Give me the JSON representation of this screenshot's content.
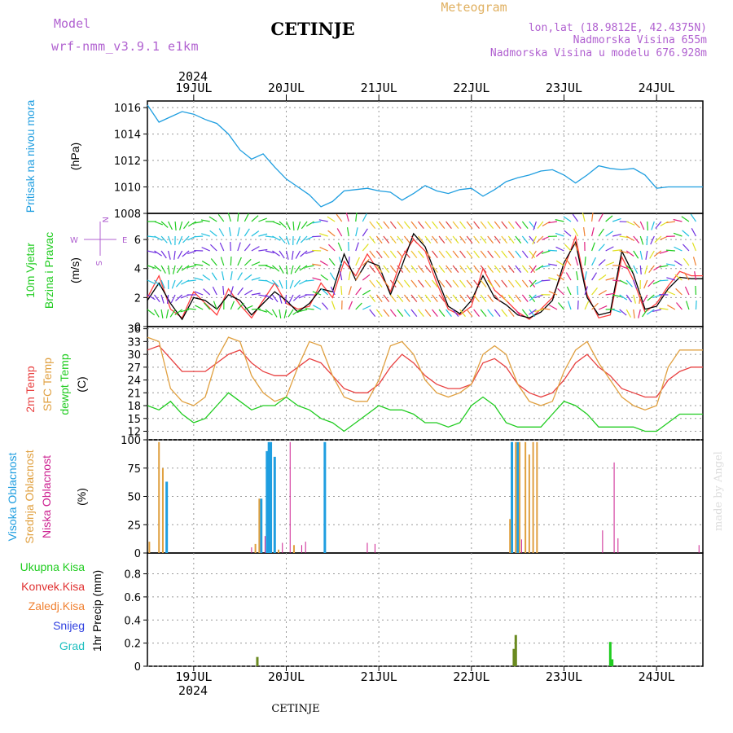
{
  "header": {
    "model_label": "Model",
    "model_name": "wrf-nmm_v3.9.1  e1km",
    "title": "CETINJE",
    "meteogram": "Meteogram",
    "lonlat": "lon,lat (18.9812E, 42.4375N)",
    "altitude": "Nadmorska Visina 655m",
    "model_altitude": "Nadmorska Visina u modelu 676.928m",
    "year": "2024",
    "footer_station": "CETINJE",
    "credit": "made by Angel"
  },
  "time_axis": {
    "day_labels": [
      "19JUL",
      "20JUL",
      "21JUL",
      "22JUL",
      "23JUL",
      "24JUL"
    ],
    "year": "2024",
    "start_hour": 12,
    "days_shown": 6
  },
  "colors": {
    "pressure": "#1f9ee0",
    "temp2m": "#e84040",
    "sfc": "#e0a040",
    "dewpt": "#20cc20",
    "high_cloud": "#1f9ee0",
    "mid_cloud": "#e0a040",
    "low_cloud": "#cc2090",
    "total_precip": "#20cc20",
    "conv_precip": "#e03030",
    "frozen_precip": "#f08030",
    "snow": "#3040e0",
    "hail": "#20c0c0"
  },
  "panels": {
    "pressure": {
      "ylabel_main": "Pritisak na nivou mora",
      "unit": "(hPa)",
      "ticks": [
        "1016",
        "1014",
        "1012",
        "1010",
        "1008"
      ]
    },
    "wind": {
      "ylabel_1": "10m Vjetar",
      "ylabel_2": "Brzina i Pravac",
      "unit": "(m/s)",
      "compass": {
        "n": "N",
        "s": "S",
        "e": "E",
        "w": "W"
      },
      "ticks": [
        "6",
        "4",
        "2",
        "0"
      ]
    },
    "temperature": {
      "ylabel_1": "2m Temp",
      "ylabel_2": "SFC Temp",
      "ylabel_3": "dewpt Temp",
      "unit": "(C)",
      "ticks": [
        "36",
        "33",
        "30",
        "27",
        "24",
        "21",
        "18",
        "15",
        "12"
      ]
    },
    "clouds": {
      "ylabel_1": "Visoka Oblacnost",
      "ylabel_2": "Srednja Oblacnost",
      "ylabel_3": "Niska Oblacnost",
      "unit": "(%)",
      "ticks": [
        "100",
        "75",
        "50",
        "25",
        "0"
      ]
    },
    "precip": {
      "legend": [
        "Ukupna Kisa",
        "Konvek.Kisa",
        "Zaledj.Kisa",
        "Snijeg",
        "Grad"
      ],
      "ylabel": "1hr Precip (mm)",
      "ticks": [
        "0.8",
        "0.6",
        "0.4",
        "0.2",
        "0"
      ]
    }
  },
  "chart_data": [
    {
      "type": "line",
      "name": "pressure",
      "ylim": [
        1008,
        1016.5
      ],
      "x_hours": [
        0,
        3,
        6,
        9,
        12,
        15,
        18,
        21,
        24,
        27,
        30,
        33,
        36,
        39,
        42,
        45,
        48,
        51,
        54,
        57,
        60,
        63,
        66,
        69,
        72,
        75,
        78,
        81,
        84,
        87,
        90,
        93,
        96,
        99,
        102,
        105,
        108,
        111,
        114,
        117,
        120,
        123,
        126,
        129,
        132,
        135,
        138,
        141,
        144
      ],
      "series": [
        {
          "values": [
            1016.2,
            1014.9,
            1015.3,
            1015.7,
            1015.5,
            1015.1,
            1014.8,
            1014.0,
            1012.8,
            1012.1,
            1012.5,
            1011.5,
            1010.6,
            1010.0,
            1009.4,
            1008.5,
            1008.9,
            1009.7,
            1009.8,
            1009.9,
            1009.7,
            1009.6,
            1009.0,
            1009.5,
            1010.1,
            1009.7,
            1009.5,
            1009.8,
            1009.9,
            1009.3,
            1009.8,
            1010.4,
            1010.7,
            1010.9,
            1011.2,
            1011.3,
            1010.9,
            1010.3,
            1010.9,
            1011.6,
            1011.4,
            1011.3,
            1011.4,
            1010.9,
            1009.9,
            1010.0,
            1010.0,
            1010.0,
            1010.0
          ]
        }
      ]
    },
    {
      "type": "line",
      "name": "wind",
      "ylim": [
        0,
        7.8
      ],
      "x_hours": [
        0,
        3,
        6,
        9,
        12,
        15,
        18,
        21,
        24,
        27,
        30,
        33,
        36,
        39,
        42,
        45,
        48,
        51,
        54,
        57,
        60,
        63,
        66,
        69,
        72,
        75,
        78,
        81,
        84,
        87,
        90,
        93,
        96,
        99,
        102,
        105,
        108,
        111,
        114,
        117,
        120,
        123,
        126,
        129,
        132,
        135,
        138,
        141,
        144
      ],
      "series": [
        {
          "values": [
            2.0,
            3.5,
            1.2,
            0.6,
            2.4,
            1.6,
            0.8,
            2.6,
            1.5,
            0.6,
            1.8,
            3.0,
            1.6,
            1.2,
            1.4,
            3.0,
            2.0,
            4.5,
            3.5,
            5.0,
            3.8,
            2.4,
            4.8,
            6.0,
            5.2,
            3.0,
            1.2,
            0.8,
            1.4,
            4.0,
            2.5,
            1.8,
            1.0,
            0.5,
            1.2,
            2.0,
            4.0,
            6.2,
            2.2,
            0.6,
            0.8,
            4.8,
            3.2,
            1.0,
            1.6,
            2.8,
            3.8,
            3.5,
            3.5
          ]
        },
        {
          "values": [
            1.8,
            3.0,
            1.6,
            0.5,
            2.0,
            1.8,
            1.2,
            2.2,
            1.8,
            0.8,
            1.6,
            2.4,
            1.8,
            1.0,
            1.6,
            2.6,
            2.4,
            5.0,
            3.2,
            4.5,
            4.2,
            2.2,
            4.2,
            6.4,
            5.5,
            3.4,
            1.4,
            0.9,
            1.8,
            3.5,
            2.0,
            1.5,
            0.8,
            0.6,
            1.0,
            1.8,
            4.4,
            5.8,
            2.0,
            0.8,
            1.0,
            5.2,
            3.6,
            1.2,
            1.4,
            2.6,
            3.4,
            3.3,
            3.3
          ]
        }
      ]
    },
    {
      "type": "line",
      "name": "temperature",
      "ylim": [
        10,
        36.5
      ],
      "x_hours": [
        0,
        3,
        6,
        9,
        12,
        15,
        18,
        21,
        24,
        27,
        30,
        33,
        36,
        39,
        42,
        45,
        48,
        51,
        54,
        57,
        60,
        63,
        66,
        69,
        72,
        75,
        78,
        81,
        84,
        87,
        90,
        93,
        96,
        99,
        102,
        105,
        108,
        111,
        114,
        117,
        120,
        123,
        126,
        129,
        132,
        135,
        138,
        141,
        144
      ],
      "series": [
        {
          "name": "2m Temp",
          "values": [
            31,
            32,
            29,
            26,
            26,
            26,
            28,
            30,
            31,
            28,
            26,
            25,
            25,
            27,
            29,
            28,
            25,
            22,
            21,
            21,
            23,
            27,
            30,
            28,
            25,
            23,
            22,
            22,
            23,
            28,
            29,
            27,
            23,
            21,
            20,
            21,
            24,
            28,
            30,
            27,
            25,
            22,
            21,
            20,
            20,
            24,
            26,
            27,
            27
          ]
        },
        {
          "name": "SFC Temp",
          "values": [
            34,
            33,
            22,
            19,
            18,
            20,
            29,
            34,
            33,
            25,
            21,
            19,
            20,
            27,
            33,
            32,
            25,
            20,
            19,
            19,
            24,
            32,
            33,
            30,
            24,
            21,
            20,
            21,
            23,
            30,
            32,
            30,
            23,
            19,
            18,
            19,
            26,
            31,
            33,
            28,
            24,
            20,
            18,
            17,
            18,
            27,
            31,
            31,
            31
          ]
        },
        {
          "name": "dewpt Temp",
          "values": [
            18,
            17,
            19,
            16,
            14,
            15,
            18,
            21,
            19,
            17,
            18,
            18,
            20,
            18,
            17,
            15,
            14,
            12,
            14,
            16,
            18,
            17,
            17,
            16,
            14,
            14,
            13,
            14,
            18,
            20,
            18,
            14,
            13,
            13,
            13,
            16,
            19,
            18,
            16,
            13,
            13,
            13,
            13,
            12,
            12,
            14,
            16,
            16,
            16
          ]
        }
      ]
    },
    {
      "type": "bar",
      "name": "clouds",
      "ylim": [
        0,
        100
      ],
      "series": [
        {
          "name": "Visoka Oblacnost",
          "bars": [
            [
              5,
              63
            ],
            [
              29.5,
              48
            ],
            [
              31,
              90
            ],
            [
              31.5,
              98
            ],
            [
              32,
              98
            ],
            [
              33,
              85
            ],
            [
              46,
              98
            ],
            [
              94.5,
              98
            ],
            [
              96,
              98
            ]
          ]
        },
        {
          "name": "Srednja Oblacnost",
          "bars": [
            [
              0.5,
              10
            ],
            [
              3,
              98
            ],
            [
              4,
              75
            ],
            [
              28,
              8
            ],
            [
              29,
              48
            ],
            [
              34,
              3
            ],
            [
              38,
              7
            ],
            [
              94,
              30
            ],
            [
              95.5,
              98
            ],
            [
              96.5,
              98
            ],
            [
              98,
              98
            ],
            [
              99,
              87
            ],
            [
              100,
              98
            ],
            [
              101,
              98
            ]
          ]
        },
        {
          "name": "Niska Oblacnost",
          "bars": [
            [
              27,
              5
            ],
            [
              30.5,
              15
            ],
            [
              37,
              98
            ],
            [
              40,
              7
            ],
            [
              41,
              10
            ],
            [
              35,
              9
            ],
            [
              57,
              9
            ],
            [
              59,
              8
            ],
            [
              97,
              12
            ],
            [
              118,
              20
            ],
            [
              121,
              80
            ],
            [
              122,
              13
            ],
            [
              143,
              7
            ]
          ]
        }
      ]
    },
    {
      "type": "bar",
      "name": "precip",
      "ylim": [
        0,
        0.98
      ],
      "series": [
        {
          "name": "Ukupna Kisa",
          "bars": [
            [
              28.5,
              0.08
            ],
            [
              95,
              0.15
            ],
            [
              95.5,
              0.27
            ],
            [
              120,
              0.21
            ],
            [
              120.5,
              0.06
            ]
          ]
        }
      ]
    }
  ]
}
